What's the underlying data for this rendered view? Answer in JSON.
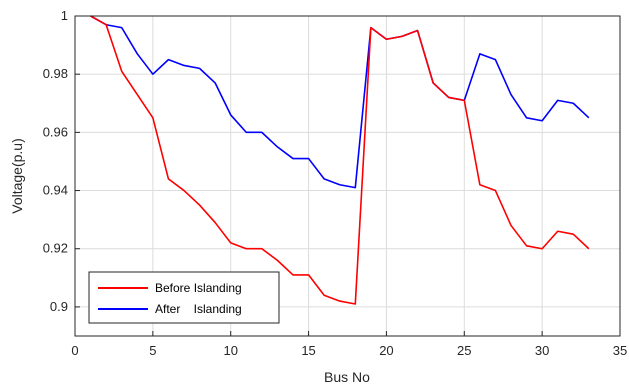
{
  "chart_data": {
    "type": "line",
    "title": "",
    "xlabel": "Bus No",
    "ylabel": "Voltage(p.u)",
    "xlim": [
      0,
      35
    ],
    "ylim": [
      0.89,
      1.0
    ],
    "xticks": [
      0,
      5,
      10,
      15,
      20,
      25,
      30,
      35
    ],
    "xtick_labels": [
      "0",
      "5",
      "10",
      "15",
      "20",
      "25",
      "30",
      "35"
    ],
    "yticks": [
      0.9,
      0.92,
      0.94,
      0.96,
      0.98,
      1.0
    ],
    "ytick_labels": [
      "0.9",
      "0.92",
      "0.94",
      "0.96",
      "0.98",
      "1"
    ],
    "grid": true,
    "legend_position": "bottom-left",
    "x": [
      1,
      2,
      3,
      4,
      5,
      6,
      7,
      8,
      9,
      10,
      11,
      12,
      13,
      14,
      15,
      16,
      17,
      18,
      19,
      20,
      21,
      22,
      23,
      24,
      25,
      26,
      27,
      28,
      29,
      30,
      31,
      32,
      33
    ],
    "series": [
      {
        "name": "Before Islanding",
        "color": "#ff0000",
        "values": [
          1.0,
          0.997,
          0.981,
          0.973,
          0.965,
          0.944,
          0.94,
          0.935,
          0.929,
          0.922,
          0.92,
          0.92,
          0.916,
          0.911,
          0.911,
          0.904,
          0.902,
          0.901,
          0.996,
          0.992,
          0.993,
          0.995,
          0.977,
          0.972,
          0.971,
          0.942,
          0.94,
          0.928,
          0.921,
          0.92,
          0.926,
          0.925,
          0.92
        ]
      },
      {
        "name": "After    Islanding",
        "color": "#0000ff",
        "values": [
          1.0,
          0.997,
          0.996,
          0.987,
          0.98,
          0.985,
          0.983,
          0.982,
          0.977,
          0.966,
          0.96,
          0.96,
          0.955,
          0.951,
          0.951,
          0.944,
          0.942,
          0.941,
          0.996,
          0.992,
          0.993,
          0.995,
          0.977,
          0.972,
          0.971,
          0.987,
          0.985,
          0.973,
          0.965,
          0.964,
          0.971,
          0.97,
          0.965
        ]
      }
    ]
  }
}
